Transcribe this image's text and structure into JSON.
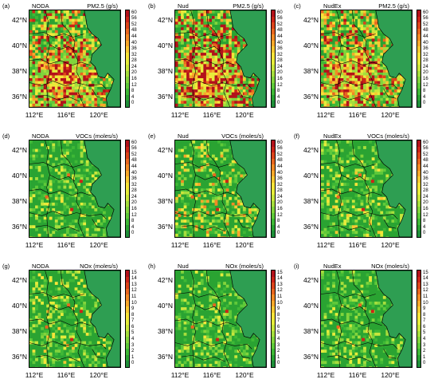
{
  "panels": [
    {
      "letter": "(a)",
      "scheme": "NODA",
      "variable": "PM2.5 (g/s)",
      "scale": "pm",
      "intensity": 0.85
    },
    {
      "letter": "(b)",
      "scheme": "Nud",
      "variable": "PM2.5 (g/s)",
      "scale": "pm",
      "intensity": 1.0
    },
    {
      "letter": "(c)",
      "scheme": "NudEx",
      "variable": "PM2.5 (g/s)",
      "scale": "pm",
      "intensity": 0.8
    },
    {
      "letter": "(d)",
      "scheme": "NODA",
      "variable": "VOCs (moles/s)",
      "scale": "voc",
      "intensity": 0.3
    },
    {
      "letter": "(e)",
      "scheme": "Nud",
      "variable": "VOCs (moles/s)",
      "scale": "voc",
      "intensity": 0.45
    },
    {
      "letter": "(f)",
      "scheme": "NudEx",
      "variable": "VOCs (moles/s)",
      "scale": "voc",
      "intensity": 0.35
    },
    {
      "letter": "(g)",
      "scheme": "NODA",
      "variable": "NOx (moles/s)",
      "scale": "nox",
      "intensity": 0.35
    },
    {
      "letter": "(h)",
      "scheme": "Nud",
      "variable": "NOx (moles/s)",
      "scale": "nox",
      "intensity": 0.3
    },
    {
      "letter": "(i)",
      "scheme": "NudEx",
      "variable": "NOx (moles/s)",
      "scale": "nox",
      "intensity": 0.3
    }
  ],
  "lat_labels": [
    "42°N",
    "40°N",
    "38°N",
    "36°N"
  ],
  "lon_labels": [
    "112°E",
    "116°E",
    "120°E"
  ],
  "scales": {
    "pm": [
      "0",
      "4",
      "8",
      "12",
      "16",
      "20",
      "24",
      "28",
      "32",
      "36",
      "40",
      "44",
      "48",
      "52",
      "56",
      "60"
    ],
    "voc": [
      "0",
      "4",
      "8",
      "12",
      "16",
      "20",
      "24",
      "28",
      "32",
      "36",
      "40",
      "44",
      "48",
      "52",
      "56",
      "60"
    ],
    "nox": [
      "0",
      "1",
      "2",
      "3",
      "4",
      "5",
      "6",
      "7",
      "8",
      "9",
      "10",
      "11",
      "12",
      "13",
      "14",
      "15"
    ]
  },
  "colors": {
    "ocean": "#2e9e52",
    "land_base": "#2aa332",
    "ramp": [
      "#1f8f3a",
      "#2aa332",
      "#3fb836",
      "#5fc93a",
      "#82d43c",
      "#a6de3d",
      "#c9e63c",
      "#e6ec3b",
      "#f7e43a",
      "#f9c832",
      "#f7a82b",
      "#f18a25",
      "#e8661f",
      "#dc441b",
      "#cc2418",
      "#b3121b"
    ]
  }
}
